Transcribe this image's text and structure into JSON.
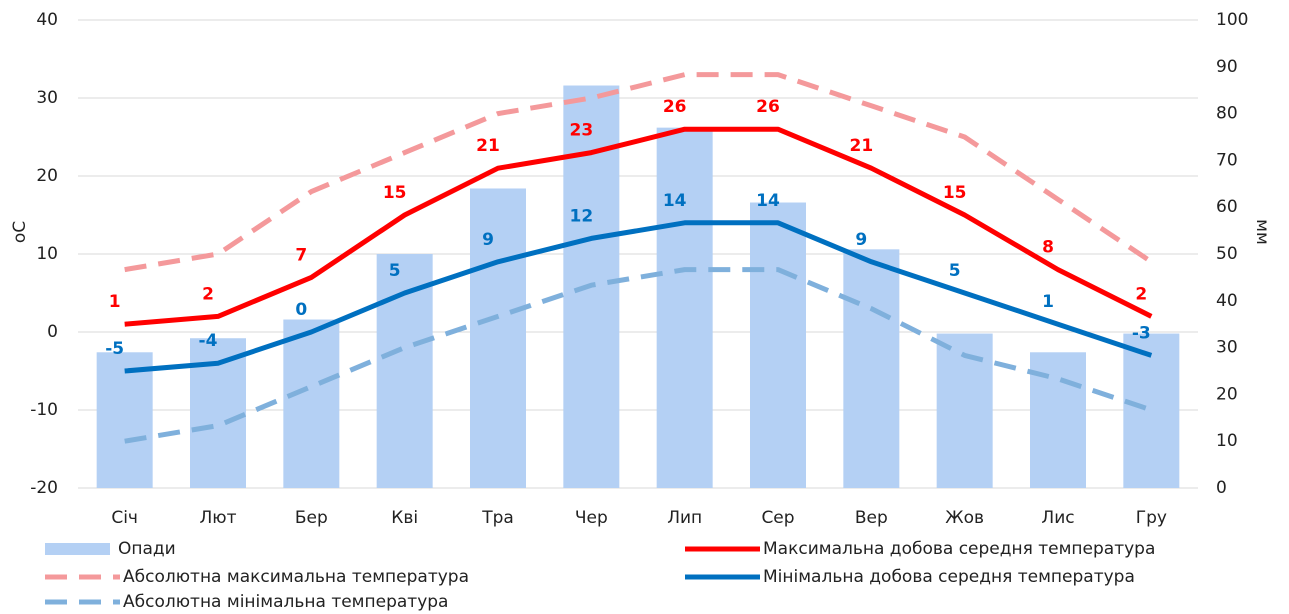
{
  "chart_data": {
    "type": "bar",
    "categories": [
      "Січ",
      "Лют",
      "Бер",
      "Кві",
      "Тра",
      "Чер",
      "Лип",
      "Сер",
      "Вер",
      "Жов",
      "Лис",
      "Гру"
    ],
    "ylabel": "oC",
    "y2label": "мм",
    "ylim": [
      -20,
      40
    ],
    "yticks": [
      -20,
      -10,
      0,
      10,
      20,
      30,
      40
    ],
    "y2lim": [
      0,
      100
    ],
    "y2ticks": [
      0,
      10,
      20,
      30,
      40,
      50,
      60,
      70,
      80,
      90,
      100
    ],
    "grid": true,
    "legend": "bottom",
    "series": [
      {
        "name": "Опади",
        "type": "bar",
        "axis": "y2",
        "color": "#b4d0f4",
        "values": [
          29,
          32,
          36,
          50,
          64,
          86,
          77,
          61,
          51,
          33,
          29,
          33
        ]
      },
      {
        "name": "Максимальна добова середня температура",
        "type": "line",
        "color": "#ff0000",
        "dashed": false,
        "data_labels": true,
        "values": [
          1,
          2,
          7,
          15,
          21,
          23,
          26,
          26,
          21,
          15,
          8,
          2
        ]
      },
      {
        "name": "Абсолютна максимальна температура",
        "type": "line",
        "color": "#f4999b",
        "dashed": true,
        "data_labels": false,
        "values": [
          8,
          10,
          18,
          23,
          28,
          30,
          33,
          33,
          29,
          25,
          17,
          9
        ]
      },
      {
        "name": "Мінімальна добова середня температура",
        "type": "line",
        "color": "#0070c0",
        "dashed": false,
        "data_labels": true,
        "values": [
          -5,
          -4,
          0,
          5,
          9,
          12,
          14,
          14,
          9,
          5,
          1,
          -3
        ]
      },
      {
        "name": "Абсолютна мінімальна температура",
        "type": "line",
        "color": "#7fb0dc",
        "dashed": true,
        "data_labels": false,
        "values": [
          -14,
          -12,
          -7,
          -2,
          2,
          6,
          8,
          8,
          3,
          -3,
          -6,
          -10
        ]
      }
    ]
  }
}
